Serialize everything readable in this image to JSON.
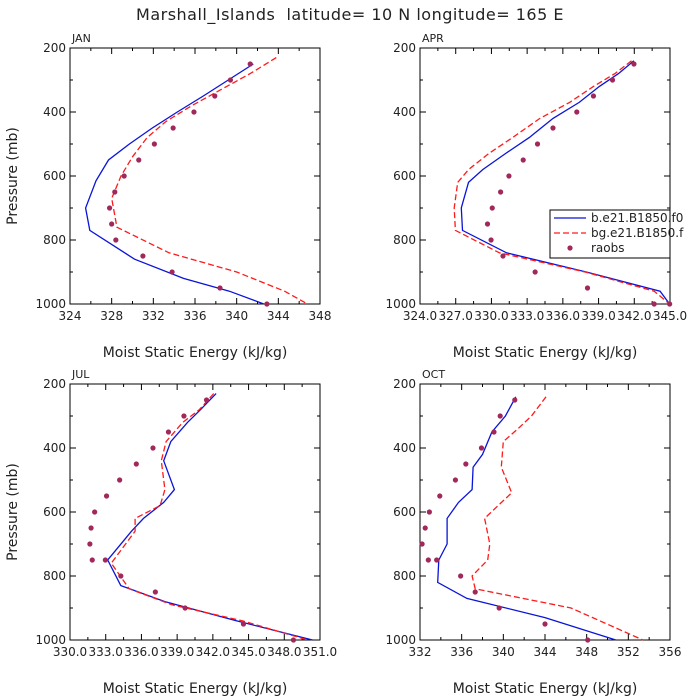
{
  "page": {
    "title": "Marshall_Islands  latitude= 10 N longitude= 165 E"
  },
  "colors": {
    "blue": "#0a14d8",
    "red": "#ff1a1a",
    "obs": "#a0285a",
    "axis": "#000000"
  },
  "legend": {
    "entries": [
      {
        "label": "b.e21.B1850.f0",
        "style": "solid-blue"
      },
      {
        "label": "bg.e21.B1850.f",
        "style": "dashed-red"
      },
      {
        "label": "raobs",
        "style": "dot"
      }
    ]
  },
  "chart_data": [
    {
      "type": "line",
      "panel": "JAN",
      "xlabel": "Moist Static Energy (kJ/kg)",
      "ylabel": "Pressure (mb)",
      "xlim": [
        324,
        348
      ],
      "ylim": [
        1000,
        200
      ],
      "xticks": [
        324,
        328,
        332,
        336,
        340,
        344,
        348
      ],
      "xtick_labels": [
        "324",
        "328",
        "332",
        "336",
        "340",
        "344",
        "348"
      ],
      "yticks": [
        200,
        400,
        600,
        800,
        1000
      ],
      "ytick_labels": [
        "200",
        "400",
        "600",
        "800",
        "1000"
      ],
      "series": [
        {
          "name": "b.e21.B1850.f0",
          "style": "solid",
          "color": "blue",
          "x": [
            341.6,
            339.2,
            336.8,
            334.3,
            331.9,
            329.7,
            327.7,
            326.5,
            325.5,
            325.9,
            330.2,
            334.9,
            339.3,
            342.6
          ],
          "y": [
            250,
            300,
            350,
            400,
            450,
            500,
            550,
            615,
            700,
            770,
            860,
            920,
            960,
            1000
          ]
        },
        {
          "name": "bg.e21.B1850.f",
          "style": "dashed",
          "color": "red",
          "x": [
            343.8,
            341.3,
            338.5,
            335.7,
            333.2,
            331.4,
            330.0,
            328.9,
            328.0,
            328.5,
            333.5,
            340.0,
            344.6,
            346.8
          ],
          "y": [
            230,
            280,
            330,
            380,
            430,
            480,
            540,
            600,
            670,
            760,
            840,
            900,
            960,
            1000
          ]
        },
        {
          "name": "raobs",
          "style": "dots",
          "color": "obs",
          "x": [
            341.3,
            339.4,
            337.9,
            335.9,
            333.9,
            332.1,
            330.6,
            329.2,
            328.3,
            327.8,
            328.0,
            328.4,
            331.0,
            333.8,
            338.4,
            342.9
          ],
          "y": [
            250,
            300,
            350,
            400,
            450,
            500,
            550,
            600,
            650,
            700,
            750,
            800,
            850,
            900,
            950,
            1000
          ]
        }
      ]
    },
    {
      "type": "line",
      "panel": "APR",
      "xlabel": "Moist Static Energy (kJ/kg)",
      "ylabel": "",
      "xlim": [
        324.03,
        345.03
      ],
      "ylim": [
        1000,
        200
      ],
      "xticks": [
        324.03,
        327.03,
        330.03,
        333.03,
        336.03,
        339.03,
        342.03,
        345.03
      ],
      "xtick_labels": [
        "324.0",
        "327.0",
        "330.0",
        "333.0",
        "336.0",
        "339.0",
        "342.0",
        "345.0"
      ],
      "yticks": [
        200,
        400,
        600,
        800,
        1000
      ],
      "ytick_labels": [
        "200",
        "400",
        "600",
        "800",
        "1000"
      ],
      "series": [
        {
          "name": "b.e21.B1850.f0",
          "style": "solid",
          "color": "blue",
          "x": [
            342.0,
            340.7,
            339.1,
            337.4,
            335.2,
            333.2,
            331.2,
            329.3,
            328.1,
            327.5,
            327.6,
            331.3,
            338.0,
            344.2,
            345.0
          ],
          "y": [
            240,
            280,
            320,
            370,
            420,
            480,
            530,
            580,
            620,
            700,
            770,
            840,
            900,
            960,
            1000
          ]
        },
        {
          "name": "bg.e21.B1850.f",
          "style": "dashed",
          "color": "red",
          "x": [
            341.8,
            340.4,
            338.6,
            336.6,
            334.1,
            331.8,
            329.8,
            328.1,
            327.2,
            326.9,
            327.0,
            330.7,
            337.9,
            343.7,
            345.0
          ],
          "y": [
            240,
            280,
            320,
            370,
            420,
            480,
            530,
            580,
            620,
            700,
            770,
            840,
            900,
            960,
            1000
          ]
        },
        {
          "name": "raobs",
          "style": "dots",
          "color": "obs",
          "x": [
            342.0,
            340.2,
            338.6,
            337.2,
            335.2,
            333.9,
            332.7,
            331.5,
            330.8,
            330.1,
            329.7,
            330.0,
            331.0,
            333.7,
            338.1,
            343.7,
            345.0
          ],
          "y": [
            250,
            300,
            350,
            400,
            450,
            500,
            550,
            600,
            650,
            700,
            750,
            800,
            850,
            900,
            950,
            1000,
            1000
          ]
        }
      ]
    },
    {
      "type": "line",
      "panel": "JUL",
      "xlabel": "Moist Static Energy (kJ/kg)",
      "ylabel": "Pressure (mb)",
      "xlim": [
        330.03,
        351.03
      ],
      "ylim": [
        1000,
        200
      ],
      "xticks": [
        330.03,
        333.03,
        336.03,
        339.03,
        342.03,
        345.03,
        348.03,
        351.03
      ],
      "xtick_labels": [
        "330.0",
        "333.0",
        "336.0",
        "339.0",
        "342.0",
        "345.0",
        "348.0",
        "351.0"
      ],
      "yticks": [
        200,
        400,
        600,
        800,
        1000
      ],
      "ytick_labels": [
        "200",
        "400",
        "600",
        "800",
        "1000"
      ],
      "series": [
        {
          "name": "b.e21.B1850.f0",
          "style": "solid",
          "color": "blue",
          "x": [
            342.3,
            341.0,
            339.9,
            338.5,
            337.9,
            338.8,
            337.9,
            336.2,
            335.2,
            333.2,
            334.3,
            338.0,
            344.0,
            350.4
          ],
          "y": [
            230,
            280,
            320,
            380,
            440,
            530,
            570,
            620,
            660,
            750,
            830,
            880,
            940,
            1000
          ]
        },
        {
          "name": "bg.e21.B1850.f",
          "style": "dashed",
          "color": "red",
          "x": [
            342.1,
            340.9,
            339.5,
            338.1,
            337.7,
            338.0,
            337.6,
            335.5,
            335.5,
            333.5,
            335.0,
            338.6,
            344.5,
            350.0
          ],
          "y": [
            230,
            280,
            320,
            380,
            440,
            530,
            580,
            620,
            660,
            760,
            840,
            890,
            940,
            1000
          ]
        },
        {
          "name": "raobs",
          "style": "dots",
          "color": "obs",
          "x": [
            341.5,
            339.6,
            338.3,
            337.0,
            335.6,
            334.2,
            333.1,
            332.1,
            331.8,
            331.7,
            331.9,
            333.0,
            334.3,
            337.2,
            339.7,
            344.6,
            348.8
          ],
          "y": [
            250,
            300,
            350,
            400,
            450,
            500,
            550,
            600,
            650,
            700,
            750,
            750,
            800,
            850,
            900,
            950,
            1000
          ]
        }
      ]
    },
    {
      "type": "line",
      "panel": "OCT",
      "xlabel": "Moist Static Energy (kJ/kg)",
      "ylabel": "",
      "xlim": [
        332,
        356
      ],
      "ylim": [
        1000,
        200
      ],
      "xticks": [
        332,
        336,
        340,
        344,
        348,
        352,
        356
      ],
      "xtick_labels": [
        "332",
        "336",
        "340",
        "344",
        "348",
        "352",
        "356"
      ],
      "yticks": [
        200,
        400,
        600,
        800,
        1000
      ],
      "ytick_labels": [
        "200",
        "400",
        "600",
        "800",
        "1000"
      ],
      "series": [
        {
          "name": "b.e21.B1850.f0",
          "style": "solid",
          "color": "blue",
          "x": [
            341.2,
            340.2,
            338.9,
            338.0,
            337.1,
            337.0,
            335.7,
            334.6,
            334.6,
            333.8,
            333.7,
            336.5,
            344.0,
            350.8
          ],
          "y": [
            240,
            300,
            350,
            420,
            460,
            530,
            570,
            620,
            700,
            750,
            820,
            870,
            930,
            1000
          ]
        },
        {
          "name": "bg.e21.B1850.f",
          "style": "dashed",
          "color": "red",
          "x": [
            344.1,
            342.7,
            341.4,
            340.0,
            339.8,
            340.8,
            339.5,
            338.2,
            338.7,
            338.5,
            337.0,
            337.3,
            346.5,
            353.4
          ],
          "y": [
            240,
            300,
            340,
            380,
            460,
            540,
            580,
            620,
            700,
            750,
            800,
            840,
            900,
            1000
          ]
        },
        {
          "name": "raobs",
          "style": "dots",
          "color": "obs",
          "x": [
            341.1,
            339.7,
            339.1,
            337.9,
            336.4,
            335.4,
            333.9,
            332.9,
            332.5,
            332.2,
            332.8,
            333.6,
            335.9,
            337.3,
            339.6,
            344.0,
            348.1
          ],
          "y": [
            250,
            300,
            350,
            400,
            450,
            500,
            550,
            600,
            650,
            700,
            750,
            750,
            800,
            850,
            900,
            950,
            1000
          ]
        }
      ]
    }
  ]
}
